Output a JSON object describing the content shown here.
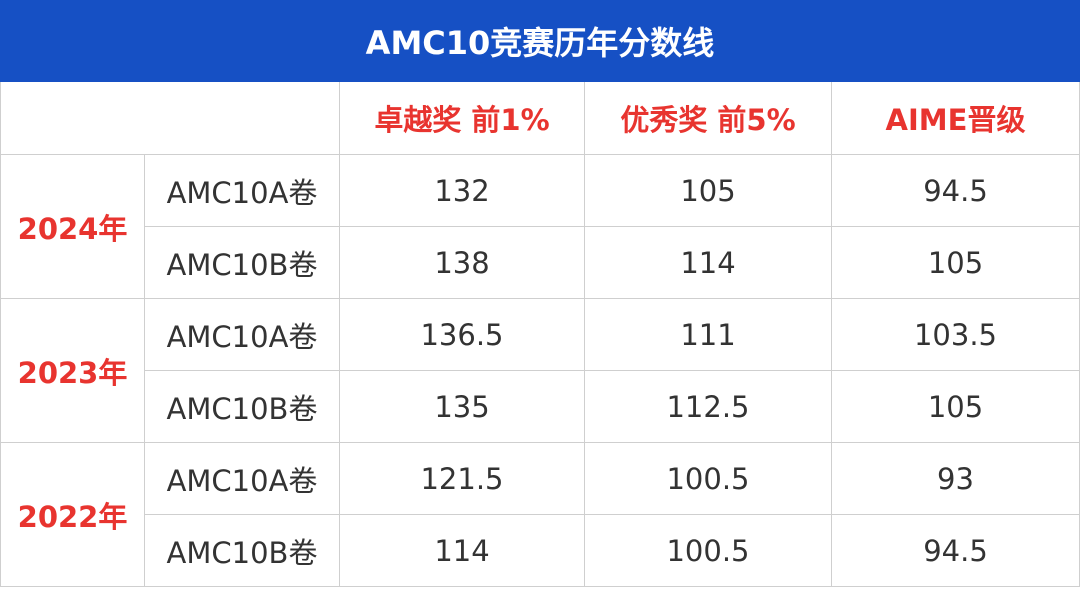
{
  "header": {
    "title": "AMC10竞赛历年分数线"
  },
  "table": {
    "columns": [
      "卓越奖 前1%",
      "优秀奖 前5%",
      "AIME晋级"
    ],
    "groups": [
      {
        "year": "2024年",
        "rows": [
          {
            "paper": "AMC10A卷",
            "values": [
              132,
              105,
              94.5
            ]
          },
          {
            "paper": "AMC10B卷",
            "values": [
              138,
              114,
              105
            ]
          }
        ]
      },
      {
        "year": "2023年",
        "rows": [
          {
            "paper": "AMC10A卷",
            "values": [
              136.5,
              111,
              103.5
            ]
          },
          {
            "paper": "AMC10B卷",
            "values": [
              135,
              112.5,
              105
            ]
          }
        ]
      },
      {
        "year": "2022年",
        "rows": [
          {
            "paper": "AMC10A卷",
            "values": [
              121.5,
              100.5,
              93
            ]
          },
          {
            "paper": "AMC10B卷",
            "values": [
              114,
              100.5,
              94.5
            ]
          }
        ]
      }
    ]
  }
}
